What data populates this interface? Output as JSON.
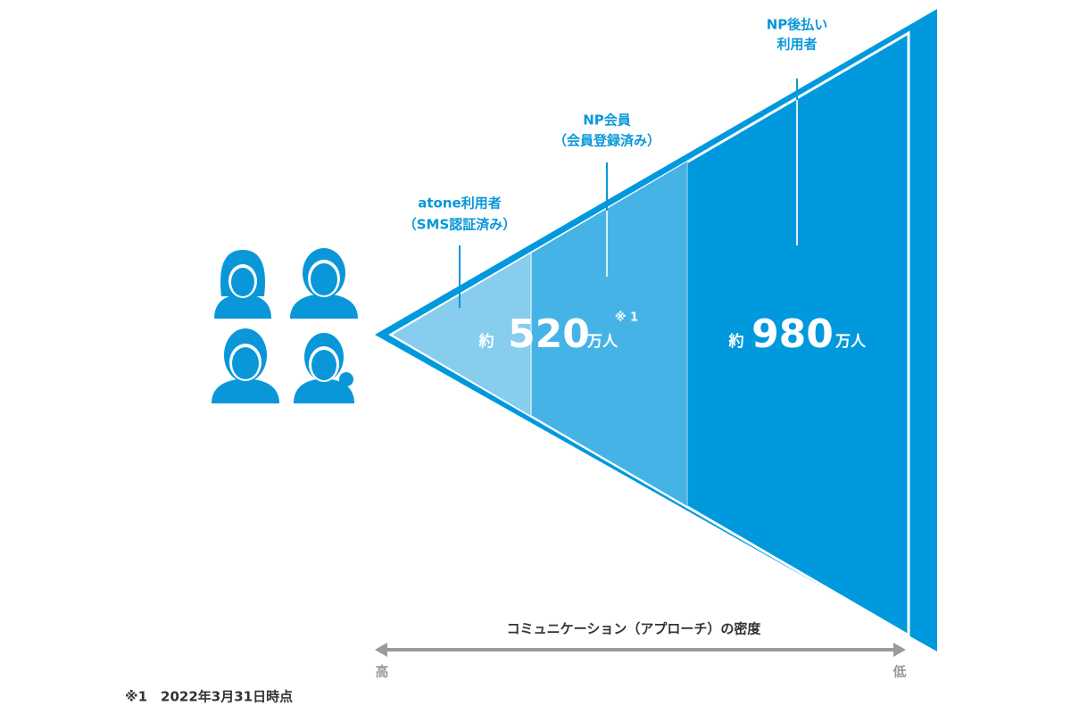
{
  "labels": {
    "np_postpay": {
      "line1": "NP後払い",
      "line2": "利用者"
    },
    "np_member": {
      "line1": "NP会員",
      "line2": "（会員登録済み）"
    },
    "atone": {
      "line1": "atone利用者",
      "line2": "（SMS認証済み）"
    }
  },
  "figures": [
    {
      "prefix": "約",
      "number": 520,
      "unit": "万人",
      "note": "※ 1"
    },
    {
      "prefix": "約",
      "number": 980,
      "unit": "万人"
    }
  ],
  "axis": {
    "title": "コミュニケーション（アプローチ）の密度",
    "high": "高",
    "low": "低"
  },
  "footnote": "※1　2022年3月31日時点"
}
